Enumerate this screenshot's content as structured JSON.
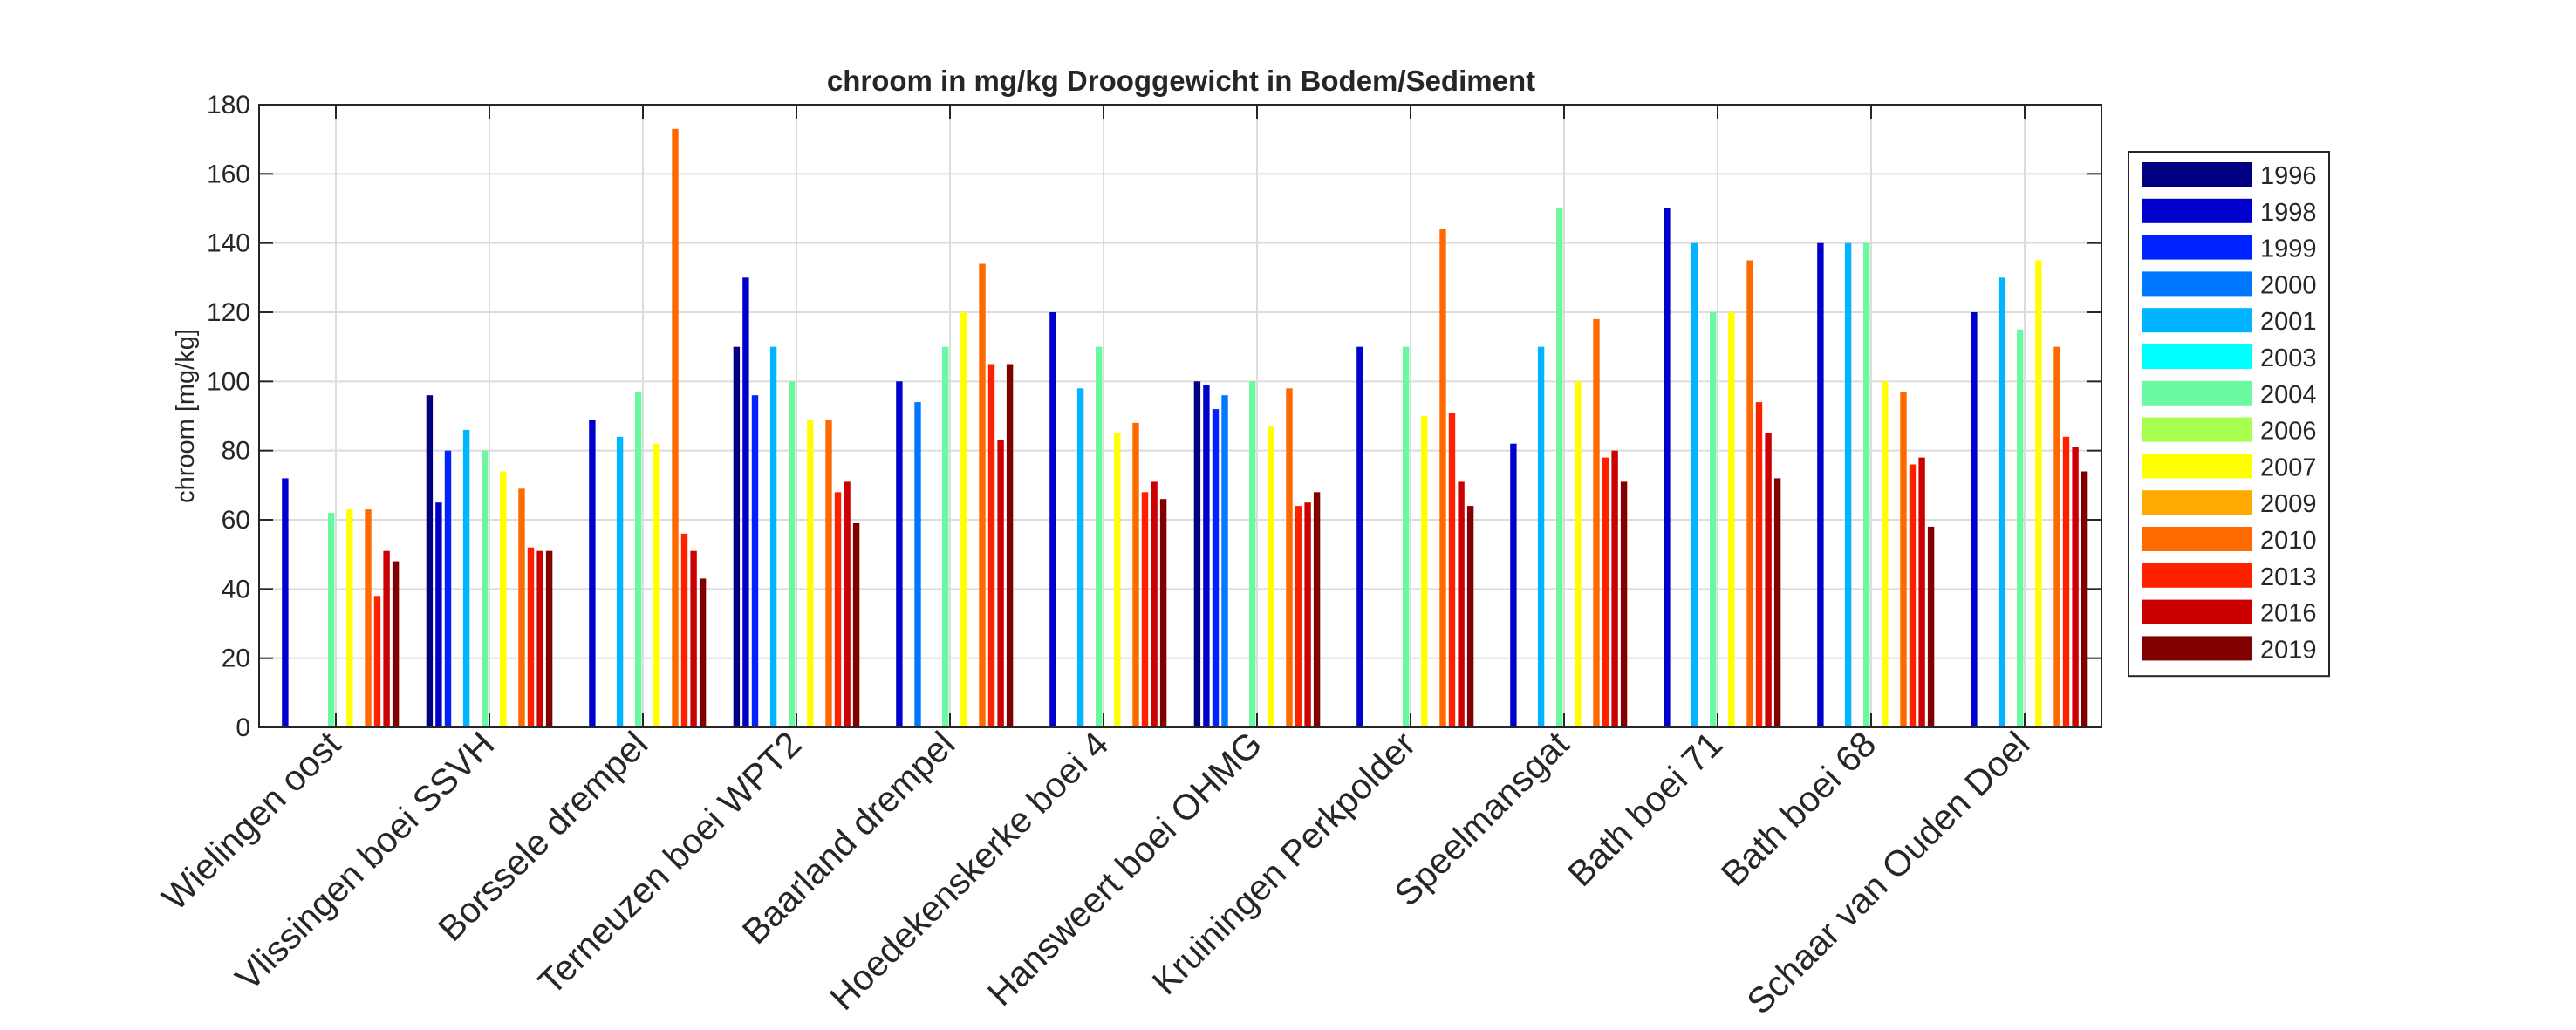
{
  "chart_data": {
    "type": "bar",
    "title": "chroom in mg/kg Drooggewicht in Bodem/Sediment",
    "xlabel": "",
    "ylabel": "chroom [mg/kg]",
    "ylim": [
      0,
      180
    ],
    "yticks": [
      "0",
      "20",
      "40",
      "60",
      "80",
      "100",
      "120",
      "140",
      "160",
      "180"
    ],
    "grid": true,
    "legend_position": "right",
    "categories": [
      "Wielingen oost",
      "Vlissingen boei SSVH",
      "Borssele drempel",
      "Terneuzen boei WPT2",
      "Baarland drempel",
      "Hoedekenskerke boei 4",
      "Hansweert boei OHMG",
      "Kruiningen Perkpolder",
      "Speelmansgat",
      "Bath boei 71",
      "Bath boei 68",
      "Schaar van Ouden Doel"
    ],
    "series": [
      {
        "name": "1996",
        "color": "#000080",
        "values": [
          null,
          96,
          null,
          110,
          null,
          null,
          100,
          null,
          null,
          null,
          null,
          null
        ]
      },
      {
        "name": "1998",
        "color": "#0000CC",
        "values": [
          72,
          65,
          89,
          130,
          100,
          120,
          99,
          110,
          82,
          150,
          140,
          120
        ]
      },
      {
        "name": "1999",
        "color": "#0022FF",
        "values": [
          null,
          80,
          null,
          96,
          null,
          null,
          92,
          null,
          null,
          null,
          null,
          null
        ]
      },
      {
        "name": "2000",
        "color": "#0077FF",
        "values": [
          null,
          null,
          null,
          null,
          94,
          null,
          96,
          null,
          null,
          null,
          null,
          null
        ]
      },
      {
        "name": "2001",
        "color": "#00B4FF",
        "values": [
          null,
          86,
          84,
          110,
          null,
          98,
          null,
          null,
          110,
          140,
          140,
          130
        ]
      },
      {
        "name": "2003",
        "color": "#00FFFF",
        "values": [
          null,
          null,
          null,
          null,
          null,
          null,
          null,
          null,
          null,
          null,
          null,
          null
        ]
      },
      {
        "name": "2004",
        "color": "#6AF9A0",
        "values": [
          62,
          80,
          97,
          100,
          110,
          110,
          100,
          110,
          150,
          120,
          140,
          115
        ]
      },
      {
        "name": "2006",
        "color": "#A8FF50",
        "values": [
          null,
          null,
          null,
          null,
          null,
          null,
          null,
          null,
          null,
          null,
          null,
          null
        ]
      },
      {
        "name": "2007",
        "color": "#FFFF00",
        "values": [
          63,
          74,
          82,
          89,
          120,
          85,
          87,
          90,
          100,
          120,
          100,
          135
        ]
      },
      {
        "name": "2009",
        "color": "#FFAA00",
        "values": [
          null,
          null,
          null,
          null,
          null,
          null,
          null,
          null,
          null,
          null,
          null,
          null
        ]
      },
      {
        "name": "2010",
        "color": "#FF6A00",
        "values": [
          63,
          69,
          173,
          89,
          134,
          88,
          98,
          144,
          118,
          135,
          97,
          110
        ]
      },
      {
        "name": "2013",
        "color": "#FF2000",
        "values": [
          38,
          52,
          56,
          68,
          105,
          68,
          64,
          91,
          78,
          94,
          76,
          84
        ]
      },
      {
        "name": "2016",
        "color": "#CC0000",
        "values": [
          51,
          51,
          51,
          71,
          83,
          71,
          65,
          71,
          80,
          85,
          78,
          81
        ]
      },
      {
        "name": "2019",
        "color": "#800000",
        "values": [
          48,
          51,
          43,
          59,
          105,
          66,
          68,
          64,
          71,
          72,
          58,
          74
        ]
      }
    ]
  }
}
